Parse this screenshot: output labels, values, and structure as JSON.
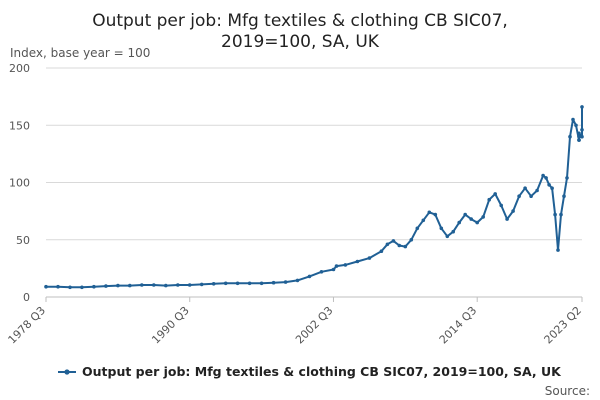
{
  "chart_data": {
    "type": "line",
    "title_lines": [
      "Output per job: Mfg textiles & clothing CB SIC07,",
      "2019=100, SA, UK"
    ],
    "ylabel": "Index, base year = 100",
    "ylim": [
      0,
      200
    ],
    "yticks": [
      0,
      50,
      100,
      150,
      200
    ],
    "xticks": [
      "1978 Q3",
      "1990 Q3",
      "2002 Q3",
      "2014 Q3",
      "2023 Q2"
    ],
    "grid": true,
    "legend_position": "bottom",
    "source_label": "Source:",
    "colors": {
      "line": "#206095",
      "grid": "#d9d9d9",
      "axis": "#bfbfbf"
    },
    "series": [
      {
        "name": "Output per job: Mfg textiles & clothing CB SIC07, 2019=100, SA, UK",
        "points": [
          [
            "1978 Q3",
            9
          ],
          [
            "1979 Q3",
            9
          ],
          [
            "1980 Q3",
            8.5
          ],
          [
            "1981 Q3",
            8.5
          ],
          [
            "1982 Q3",
            9
          ],
          [
            "1983 Q3",
            9.5
          ],
          [
            "1984 Q3",
            10
          ],
          [
            "1985 Q3",
            10
          ],
          [
            "1986 Q3",
            10.5
          ],
          [
            "1987 Q3",
            10.5
          ],
          [
            "1988 Q3",
            10
          ],
          [
            "1989 Q3",
            10.5
          ],
          [
            "1990 Q3",
            10.5
          ],
          [
            "1991 Q3",
            11
          ],
          [
            "1992 Q3",
            11.5
          ],
          [
            "1993 Q3",
            12
          ],
          [
            "1994 Q3",
            12
          ],
          [
            "1995 Q3",
            12
          ],
          [
            "1996 Q3",
            12
          ],
          [
            "1997 Q3",
            12.5
          ],
          [
            "1998 Q3",
            13
          ],
          [
            "1999 Q3",
            14.5
          ],
          [
            "2000 Q3",
            18
          ],
          [
            "2001 Q3",
            22
          ],
          [
            "2002 Q3",
            24
          ],
          [
            "2002 Q4",
            27
          ],
          [
            "2003 Q3",
            28
          ],
          [
            "2004 Q3",
            31
          ],
          [
            "2005 Q3",
            34
          ],
          [
            "2006 Q3",
            40
          ],
          [
            "2007 Q1",
            46
          ],
          [
            "2007 Q3",
            49
          ],
          [
            "2008 Q1",
            45
          ],
          [
            "2008 Q3",
            44
          ],
          [
            "2009 Q1",
            50
          ],
          [
            "2009 Q3",
            60
          ],
          [
            "2010 Q1",
            67
          ],
          [
            "2010 Q3",
            74
          ],
          [
            "2011 Q1",
            72
          ],
          [
            "2011 Q3",
            60
          ],
          [
            "2012 Q1",
            53
          ],
          [
            "2012 Q3",
            57
          ],
          [
            "2013 Q1",
            65
          ],
          [
            "2013 Q3",
            72
          ],
          [
            "2014 Q1",
            68
          ],
          [
            "2014 Q3",
            65
          ],
          [
            "2015 Q1",
            70
          ],
          [
            "2015 Q3",
            85
          ],
          [
            "2016 Q1",
            90
          ],
          [
            "2016 Q3",
            80
          ],
          [
            "2017 Q1",
            68
          ],
          [
            "2017 Q3",
            75
          ],
          [
            "2018 Q1",
            88
          ],
          [
            "2018 Q3",
            95
          ],
          [
            "2019 Q1",
            88
          ],
          [
            "2019 Q3",
            93
          ],
          [
            "2020 Q1",
            106
          ],
          [
            "2020 Q2",
            104
          ],
          [
            "2020 Q3",
            98
          ],
          [
            "2020 Q4",
            95
          ],
          [
            "2021 Q1",
            72
          ],
          [
            "2021 Q2",
            41
          ],
          [
            "2021 Q3",
            72
          ],
          [
            "2021 Q4",
            88
          ],
          [
            "2022 Q1",
            104
          ],
          [
            "2022 Q2",
            140
          ],
          [
            "2022 Q3",
            155
          ],
          [
            "2022 Q4",
            150
          ],
          [
            "2023 Q1",
            137
          ],
          [
            "2023 Q1",
            137
          ],
          [
            "2023 Q1",
            140
          ],
          [
            "2023 Q1",
            143
          ],
          [
            "2023 Q2",
            140
          ],
          [
            "2023 Q2",
            146
          ],
          [
            "2023 Q2",
            166
          ]
        ]
      }
    ]
  }
}
